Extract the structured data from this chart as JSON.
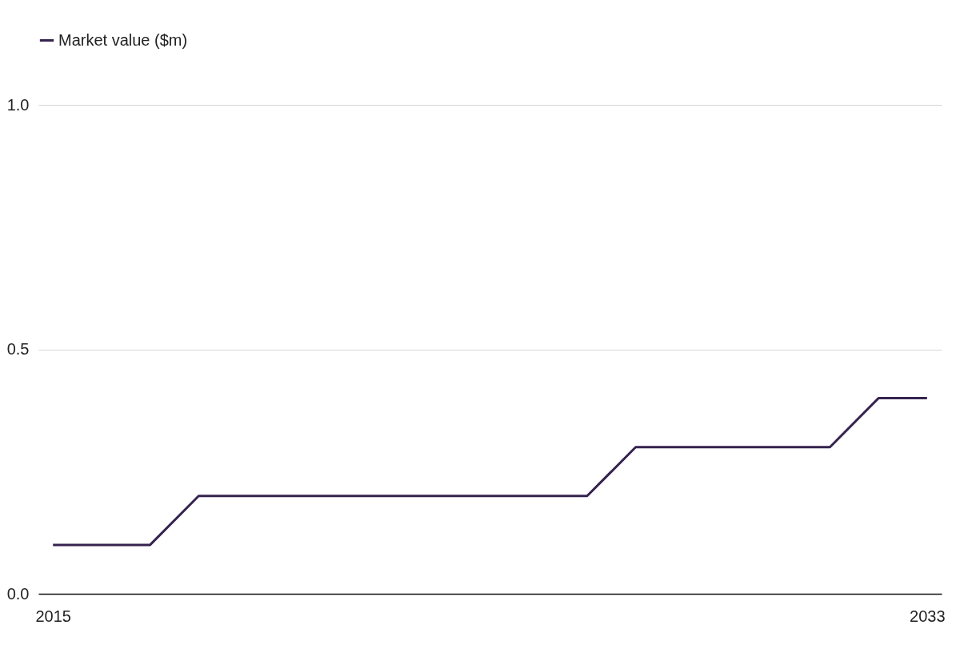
{
  "chart_data": {
    "type": "line",
    "x": [
      2015,
      2016,
      2017,
      2018,
      2019,
      2020,
      2021,
      2022,
      2023,
      2024,
      2025,
      2026,
      2027,
      2028,
      2029,
      2030,
      2031,
      2032,
      2033
    ],
    "series": [
      {
        "name": "Market value ($m)",
        "color": "#35234f",
        "values": [
          0.1,
          0.1,
          0.1,
          0.2,
          0.2,
          0.2,
          0.2,
          0.2,
          0.2,
          0.2,
          0.2,
          0.2,
          0.3,
          0.3,
          0.3,
          0.3,
          0.3,
          0.4,
          0.4
        ]
      }
    ],
    "xlim": [
      2014.7,
      2033.3
    ],
    "xticks": [
      2015,
      2033
    ],
    "ylim": [
      0,
      1
    ],
    "yticks": [
      {
        "value": 0,
        "label": "0.0"
      },
      {
        "value": 0.5,
        "label": "0.5"
      },
      {
        "value": 1,
        "label": "1.0"
      }
    ],
    "grid": "y",
    "legend": "top left",
    "marker": "none",
    "line_style": "solid"
  }
}
